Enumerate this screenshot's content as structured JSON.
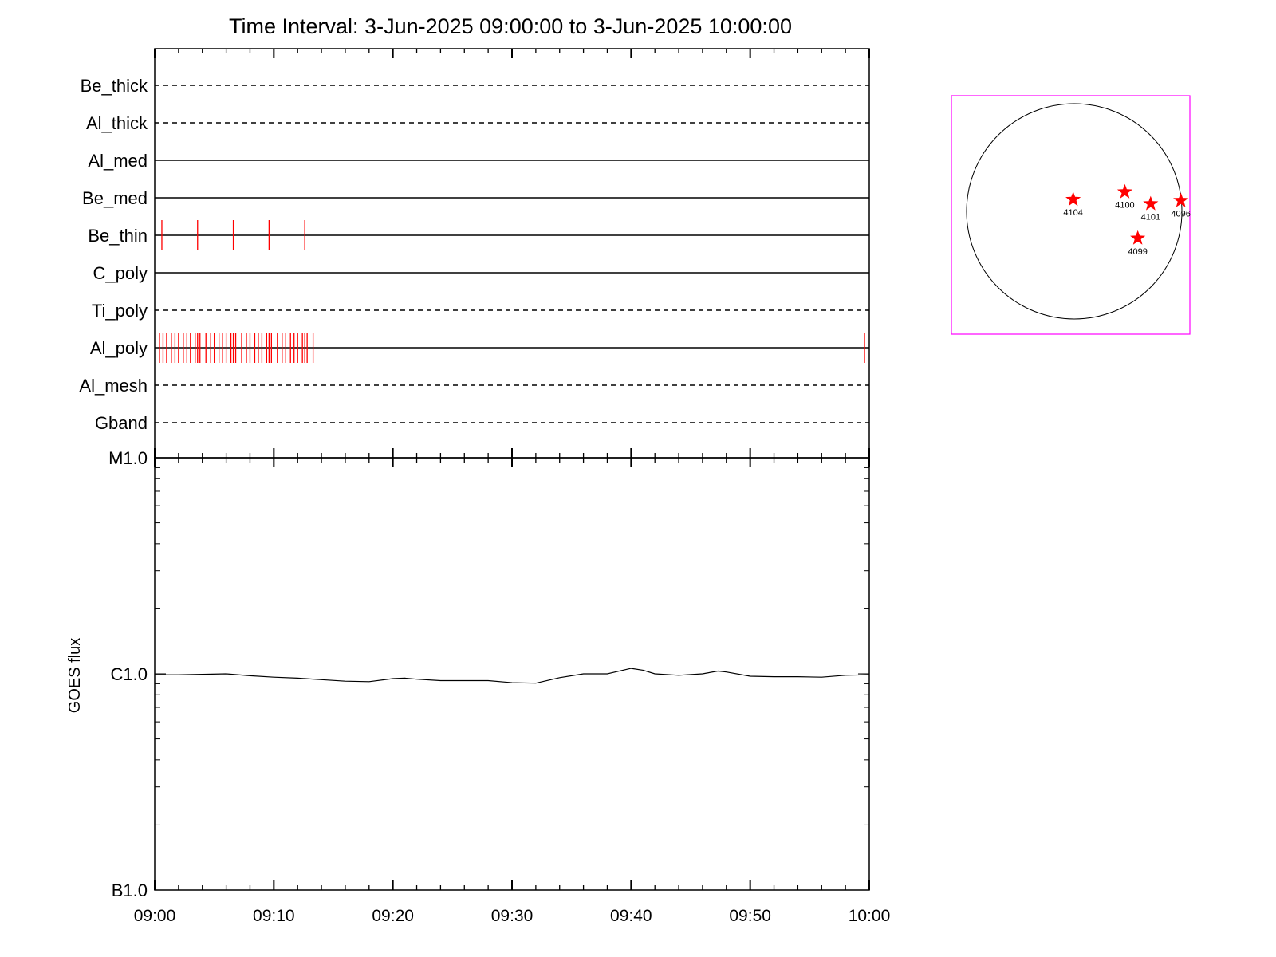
{
  "chart_data": [
    {
      "type": "event-timeline",
      "title": "Time Interval:  3-Jun-2025 09:00:00 to  3-Jun-2025 10:00:00",
      "x_ticks": [
        "09:00",
        "09:10",
        "09:20",
        "09:30",
        "09:40",
        "09:50",
        "10:00"
      ],
      "x_range_minutes": [
        0,
        60
      ],
      "grid": false,
      "tracks": [
        {
          "name": "Be_thick",
          "style": "dashed",
          "events": []
        },
        {
          "name": "Al_thick",
          "style": "dashed",
          "events": []
        },
        {
          "name": "Al_med",
          "style": "solid",
          "events": []
        },
        {
          "name": "Be_med",
          "style": "solid",
          "events": []
        },
        {
          "name": "Be_thin",
          "style": "solid",
          "events": [
            0.6,
            3.6,
            6.6,
            9.6,
            12.6
          ]
        },
        {
          "name": "C_poly",
          "style": "solid",
          "events": []
        },
        {
          "name": "Ti_poly",
          "style": "dashed",
          "events": []
        },
        {
          "name": "Al_poly",
          "style": "solid",
          "events": [
            0.4,
            0.7,
            1.0,
            1.4,
            1.7,
            2.0,
            2.4,
            2.7,
            3.0,
            3.4,
            3.6,
            3.8,
            4.3,
            4.7,
            5.0,
            5.4,
            5.7,
            6.0,
            6.4,
            6.6,
            6.8,
            7.3,
            7.7,
            8.0,
            8.4,
            8.7,
            9.0,
            9.4,
            9.6,
            9.8,
            10.3,
            10.7,
            11.0,
            11.4,
            11.7,
            12.0,
            12.4,
            12.6,
            12.8,
            13.3,
            59.6
          ]
        },
        {
          "name": "Al_mesh",
          "style": "dashed",
          "events": []
        },
        {
          "name": "Gband",
          "style": "dashed",
          "events": []
        }
      ],
      "event_color": "#ff0000"
    },
    {
      "type": "line",
      "ylabel": "GOES flux",
      "y_scale": "log",
      "y_ticks": [
        {
          "label": "M1.0",
          "value": 1e-05
        },
        {
          "label": "C1.0",
          "value": 1e-06
        },
        {
          "label": "B1.0",
          "value": 1e-07
        }
      ],
      "ylim": [
        1e-07,
        1e-05
      ],
      "x_ticks": [
        "09:00",
        "09:10",
        "09:20",
        "09:30",
        "09:40",
        "09:50",
        "10:00"
      ],
      "x_range_minutes": [
        0,
        60
      ],
      "series": [
        {
          "x": [
            0,
            2,
            4,
            6,
            8,
            10,
            12,
            14,
            16,
            18,
            20,
            21,
            22,
            24,
            26,
            28,
            30,
            32,
            34,
            36,
            38,
            40,
            41,
            42,
            44,
            46,
            47.3,
            48,
            50,
            52,
            54,
            56,
            58,
            60
          ],
          "y": [
            9.9e-07,
            9.9e-07,
            9.95e-07,
            1e-06,
            9.8e-07,
            9.65e-07,
            9.55e-07,
            9.4e-07,
            9.25e-07,
            9.2e-07,
            9.5e-07,
            9.55e-07,
            9.45e-07,
            9.3e-07,
            9.3e-07,
            9.3e-07,
            9.1e-07,
            9.05e-07,
            9.6e-07,
            1e-06,
            1e-06,
            1.06e-06,
            1.04e-06,
            1e-06,
            9.85e-07,
            1e-06,
            1.03e-06,
            1.02e-06,
            9.75e-07,
            9.7e-07,
            9.7e-07,
            9.65e-07,
            9.85e-07,
            9.9e-07
          ]
        }
      ]
    },
    {
      "type": "scatter",
      "subtype": "solar-disk-map",
      "points": [
        {
          "label": "4104",
          "x": -0.01,
          "y": 0.11
        },
        {
          "label": "4100",
          "x": 0.47,
          "y": 0.18
        },
        {
          "label": "4101",
          "x": 0.71,
          "y": 0.07
        },
        {
          "label": "4096",
          "x": 0.99,
          "y": 0.1
        },
        {
          "label": "4099",
          "x": 0.59,
          "y": -0.25
        }
      ],
      "marker_color": "#ff0000",
      "frame_color": "#ff00ff"
    }
  ]
}
